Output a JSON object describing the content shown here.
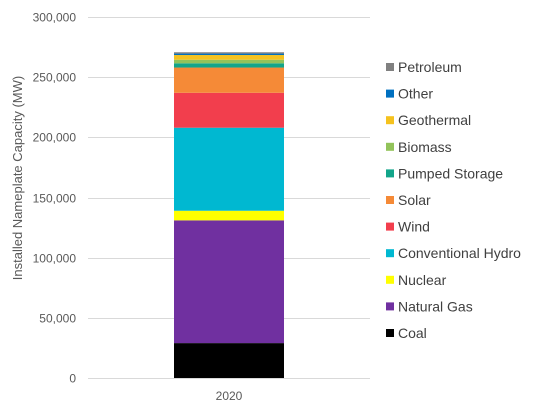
{
  "chart_data": {
    "type": "bar",
    "stacked": true,
    "categories": [
      "2020"
    ],
    "ylabel": "Installed Nameplate Capacity (MW)",
    "xlabel": "",
    "ylim": [
      0,
      300000
    ],
    "yticks": [
      0,
      50000,
      100000,
      150000,
      200000,
      250000,
      300000
    ],
    "ytick_labels": [
      "0",
      "50,000",
      "100,000",
      "150,000",
      "200,000",
      "250,000",
      "300,000"
    ],
    "grid": true,
    "legend_position": "right",
    "series": [
      {
        "name": "Coal",
        "values": [
          29000
        ],
        "color": "#000000"
      },
      {
        "name": "Natural Gas",
        "values": [
          102000
        ],
        "color": "#7030a0"
      },
      {
        "name": "Nuclear",
        "values": [
          8000
        ],
        "color": "#ffff00"
      },
      {
        "name": "Conventional Hydro",
        "values": [
          69000
        ],
        "color": "#00b8d1"
      },
      {
        "name": "Wind",
        "values": [
          29000
        ],
        "color": "#f23e4d"
      },
      {
        "name": "Solar",
        "values": [
          21000
        ],
        "color": "#f58a37"
      },
      {
        "name": "Pumped Storage",
        "values": [
          3500
        ],
        "color": "#12a58a"
      },
      {
        "name": "Biomass",
        "values": [
          3000
        ],
        "color": "#92c35a"
      },
      {
        "name": "Geothermal",
        "values": [
          3900
        ],
        "color": "#f5c21e"
      },
      {
        "name": "Other",
        "values": [
          1200
        ],
        "color": "#0070c0"
      },
      {
        "name": "Petroleum",
        "values": [
          1100
        ],
        "color": "#808080"
      }
    ]
  }
}
